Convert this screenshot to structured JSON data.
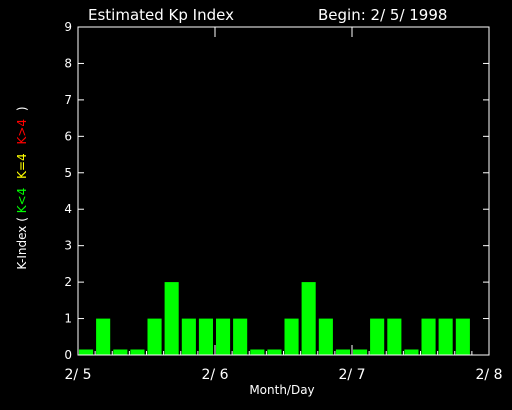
{
  "chart_data": {
    "type": "bar",
    "title": "Estimated Kp Index",
    "subtitle": "Begin: 2/ 5/ 1998",
    "xlabel": "Month/Day",
    "ylabel_prefix": "K-Index (",
    "ylabel_low": "K<4",
    "ylabel_mid": "K=4",
    "ylabel_high": "K>4",
    "ylabel_suffix": ")",
    "ylim": [
      0,
      9
    ],
    "yticks": [
      0,
      1,
      2,
      3,
      4,
      5,
      6,
      7,
      8,
      9
    ],
    "xlim": [
      0,
      24
    ],
    "xticks": [
      {
        "pos": 0,
        "label": "2/ 5"
      },
      {
        "pos": 8,
        "label": "2/ 6"
      },
      {
        "pos": 16,
        "label": "2/ 7"
      },
      {
        "pos": 24,
        "label": "2/ 8"
      }
    ],
    "values": [
      0.15,
      1,
      0.15,
      0.15,
      1,
      2,
      1,
      1,
      1,
      1,
      0.15,
      0.15,
      1,
      2,
      1,
      0.15,
      0.15,
      1,
      1,
      0.15,
      1,
      1,
      1
    ],
    "colors": {
      "low": "#00ff00",
      "mid": "#ffff00",
      "high": "#ff0000",
      "axis": "#ffffff",
      "background": "#000000"
    }
  }
}
